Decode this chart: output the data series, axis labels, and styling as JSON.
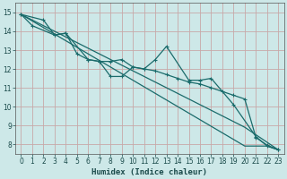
{
  "xlabel": "Humidex (Indice chaleur)",
  "xlim": [
    -0.5,
    23.5
  ],
  "ylim": [
    7.5,
    15.5
  ],
  "yticks": [
    8,
    9,
    10,
    11,
    12,
    13,
    14,
    15
  ],
  "xticks": [
    0,
    1,
    2,
    3,
    4,
    5,
    6,
    7,
    8,
    9,
    10,
    11,
    12,
    13,
    14,
    15,
    16,
    17,
    18,
    19,
    20,
    21,
    22,
    23
  ],
  "bg_color": "#cde8e8",
  "grid_color": "#c8a8a8",
  "line_color": "#1a6b6b",
  "line1_x": [
    0,
    1,
    3,
    4,
    5,
    6,
    7,
    8,
    9,
    10,
    11,
    12,
    13,
    15,
    16,
    17,
    19,
    21,
    22,
    23
  ],
  "line1_y": [
    14.9,
    14.3,
    13.8,
    13.9,
    12.8,
    12.5,
    12.4,
    11.6,
    11.6,
    12.1,
    12.0,
    12.5,
    13.2,
    11.4,
    11.4,
    11.5,
    10.1,
    8.4,
    7.9,
    7.7
  ],
  "line2_x": [
    0,
    2,
    3,
    4,
    6,
    7,
    8,
    9,
    10,
    11,
    12,
    13,
    14,
    15,
    16,
    17,
    18,
    19,
    20,
    21,
    22,
    23
  ],
  "line2_y": [
    14.9,
    14.6,
    13.8,
    13.9,
    12.5,
    12.4,
    12.4,
    12.5,
    12.1,
    12.0,
    11.9,
    11.7,
    11.5,
    11.3,
    11.2,
    11.0,
    10.8,
    10.6,
    10.4,
    8.35,
    7.95,
    7.7
  ],
  "line3_x": [
    0,
    1,
    2,
    3,
    4,
    5,
    6,
    7,
    8,
    9,
    10,
    11,
    12,
    13,
    14,
    15,
    16,
    17,
    18,
    19,
    20,
    21,
    22,
    23
  ],
  "line3_y": [
    14.9,
    14.55,
    14.2,
    13.85,
    13.5,
    13.15,
    12.8,
    12.45,
    12.1,
    11.75,
    11.4,
    11.05,
    10.7,
    10.35,
    10.0,
    9.65,
    9.3,
    8.95,
    8.6,
    8.25,
    7.9,
    7.9,
    7.9,
    7.7
  ],
  "line4_x": [
    0,
    1,
    2,
    3,
    4,
    5,
    6,
    7,
    8,
    9,
    10,
    11,
    12,
    13,
    14,
    15,
    16,
    17,
    18,
    19,
    20,
    21,
    22,
    23
  ],
  "line4_y": [
    14.9,
    14.6,
    14.3,
    14.0,
    13.7,
    13.4,
    13.1,
    12.8,
    12.5,
    12.2,
    11.9,
    11.6,
    11.3,
    11.0,
    10.7,
    10.4,
    10.1,
    9.8,
    9.5,
    9.2,
    8.9,
    8.5,
    8.1,
    7.7
  ]
}
